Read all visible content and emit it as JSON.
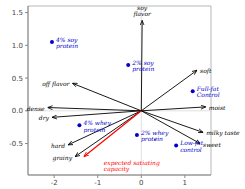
{
  "chart_data": {
    "type": "scatter",
    "xlim": [
      -2.6,
      1.6
    ],
    "ylim": [
      -0.98,
      1.6
    ],
    "xticks": [
      -2,
      -1,
      0,
      1
    ],
    "yticks": [
      -0.5,
      {
        "value": 0.0,
        "label": "0.0"
      },
      0.5,
      {
        "value": 1.0,
        "label": "1.0"
      },
      1.5
    ],
    "series": [
      {
        "type": "scatter",
        "color": "#0000cc",
        "x": [
          -2.05,
          -0.3,
          -1.42,
          -0.1,
          1.18,
          0.8
        ],
        "values": [
          1.05,
          0.7,
          -0.22,
          -0.37,
          0.3,
          -0.53
        ],
        "labels": [
          "4% soy\nprotein",
          "2% soy\nprotein",
          "4% whey\nprotein",
          "2% whey\nprotein",
          "Full-fat\nControl",
          "Low-fat\ncontrol"
        ]
      },
      {
        "type": "arrow",
        "color": "black",
        "x": [
          0.02,
          -1.58,
          -2.15,
          -2.05,
          -1.68,
          -1.52,
          1.28,
          1.48,
          1.42,
          1.35
        ],
        "values": [
          1.38,
          0.42,
          0.05,
          -0.1,
          -0.52,
          -0.7,
          0.62,
          0.06,
          -0.33,
          -0.5
        ],
        "labels": [
          "soy\nflavor",
          "off flavor",
          "dense",
          "dry",
          "hard",
          "grainy",
          "soft",
          "moist",
          "milky taste",
          "sweet"
        ]
      },
      {
        "type": "arrow",
        "color": "red",
        "x": [
          -1.32
        ],
        "values": [
          -0.7
        ],
        "labels": [
          "expected satiating\ncapacity"
        ]
      },
      {
        "type": "scatter",
        "color": "#888888",
        "x": [
          0.32
        ],
        "values": [
          -0.44
        ]
      }
    ]
  }
}
